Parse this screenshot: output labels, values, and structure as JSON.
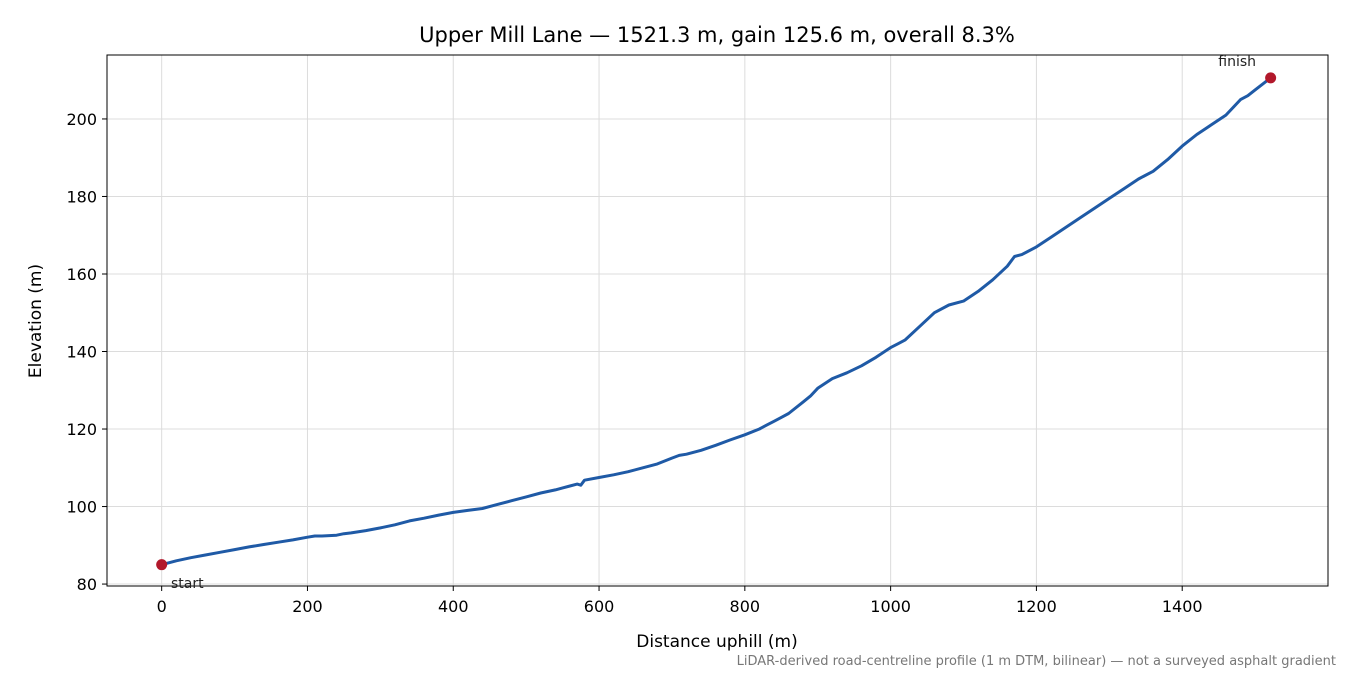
{
  "chart_data": {
    "type": "line",
    "title": "Upper Mill Lane — 1521.3 m, gain 125.6 m, overall 8.3%",
    "xlabel": "Distance uphill (m)",
    "ylabel": "Elevation (m)",
    "xlim": [
      -75,
      1600
    ],
    "ylim": [
      79.5,
      216.5
    ],
    "xticks": [
      0,
      200,
      400,
      600,
      800,
      1000,
      1200,
      1400
    ],
    "yticks": [
      80,
      100,
      120,
      140,
      160,
      180,
      200
    ],
    "grid": true,
    "line_color": "#1f5aa6",
    "marker_color": "#b2182b",
    "series": [
      {
        "x": [
          0,
          20,
          40,
          60,
          80,
          100,
          120,
          140,
          160,
          180,
          200,
          210,
          220,
          240,
          250,
          260,
          280,
          300,
          320,
          340,
          360,
          380,
          400,
          420,
          440,
          460,
          480,
          500,
          520,
          540,
          550,
          560,
          570,
          575,
          580,
          600,
          620,
          640,
          660,
          680,
          700,
          710,
          720,
          740,
          760,
          780,
          800,
          820,
          830,
          840,
          850,
          860,
          880,
          890,
          900,
          920,
          940,
          960,
          980,
          1000,
          1010,
          1020,
          1040,
          1060,
          1080,
          1100,
          1120,
          1140,
          1160,
          1170,
          1180,
          1200,
          1220,
          1240,
          1260,
          1280,
          1300,
          1320,
          1340,
          1360,
          1380,
          1400,
          1420,
          1440,
          1460,
          1480,
          1490,
          1500,
          1521.3
        ],
        "y": [
          85.0,
          86.0,
          86.8,
          87.5,
          88.2,
          88.9,
          89.6,
          90.2,
          90.8,
          91.4,
          92.1,
          92.4,
          92.4,
          92.6,
          93.0,
          93.2,
          93.8,
          94.5,
          95.3,
          96.3,
          97.0,
          97.8,
          98.5,
          99.0,
          99.5,
          100.5,
          101.5,
          102.5,
          103.5,
          104.3,
          104.8,
          105.3,
          105.8,
          105.5,
          106.8,
          107.5,
          108.2,
          109.0,
          110.0,
          111.0,
          112.5,
          113.2,
          113.5,
          114.5,
          115.8,
          117.2,
          118.5,
          120.0,
          121.0,
          122.0,
          123.0,
          124.0,
          127.0,
          128.5,
          130.5,
          133.0,
          134.5,
          136.3,
          138.5,
          141.0,
          142.0,
          143.0,
          146.5,
          150.0,
          152.0,
          153.0,
          155.5,
          158.5,
          162.0,
          164.5,
          165.0,
          167.0,
          169.5,
          172.0,
          174.5,
          177.0,
          179.5,
          182.0,
          184.5,
          186.5,
          189.5,
          193.0,
          196.0,
          198.5,
          201.0,
          205.0,
          206.0,
          207.5,
          210.6
        ]
      }
    ],
    "annotations": {
      "start": {
        "label": "start",
        "x": 0,
        "y": 85.0
      },
      "finish": {
        "label": "finish",
        "x": 1521.3,
        "y": 210.6
      }
    },
    "footnote": "LiDAR-derived road-centreline profile (1 m DTM, bilinear) — not a surveyed asphalt gradient"
  }
}
